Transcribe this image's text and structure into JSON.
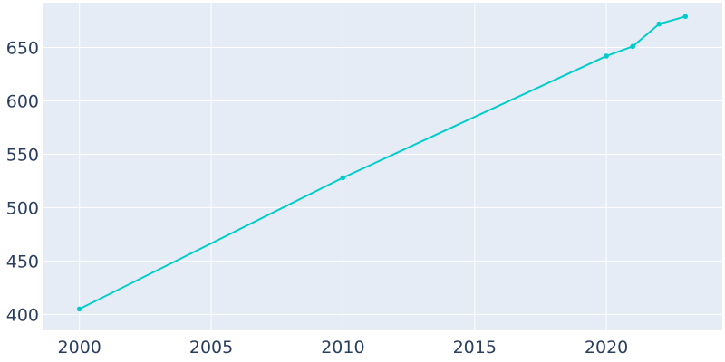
{
  "chart_data": {
    "type": "line",
    "title": "",
    "xlabel": "",
    "ylabel": "",
    "x": [
      2000,
      2010,
      2020,
      2021,
      2022,
      2023
    ],
    "series": [
      {
        "values": [
          405,
          528,
          642,
          651,
          672,
          679
        ]
      }
    ],
    "xlim": [
      1998.6,
      2024.4
    ],
    "ylim": [
      385,
      692
    ],
    "xticks": [
      2000,
      2005,
      2010,
      2015,
      2020
    ],
    "yticks": [
      400,
      450,
      500,
      550,
      600,
      650
    ],
    "grid": true,
    "legend": "none",
    "colors": {
      "plot_background": "#e5ecf6",
      "grid": "#ffffff",
      "line": "#00cccc",
      "tick_text": "#2a3f5f"
    }
  }
}
